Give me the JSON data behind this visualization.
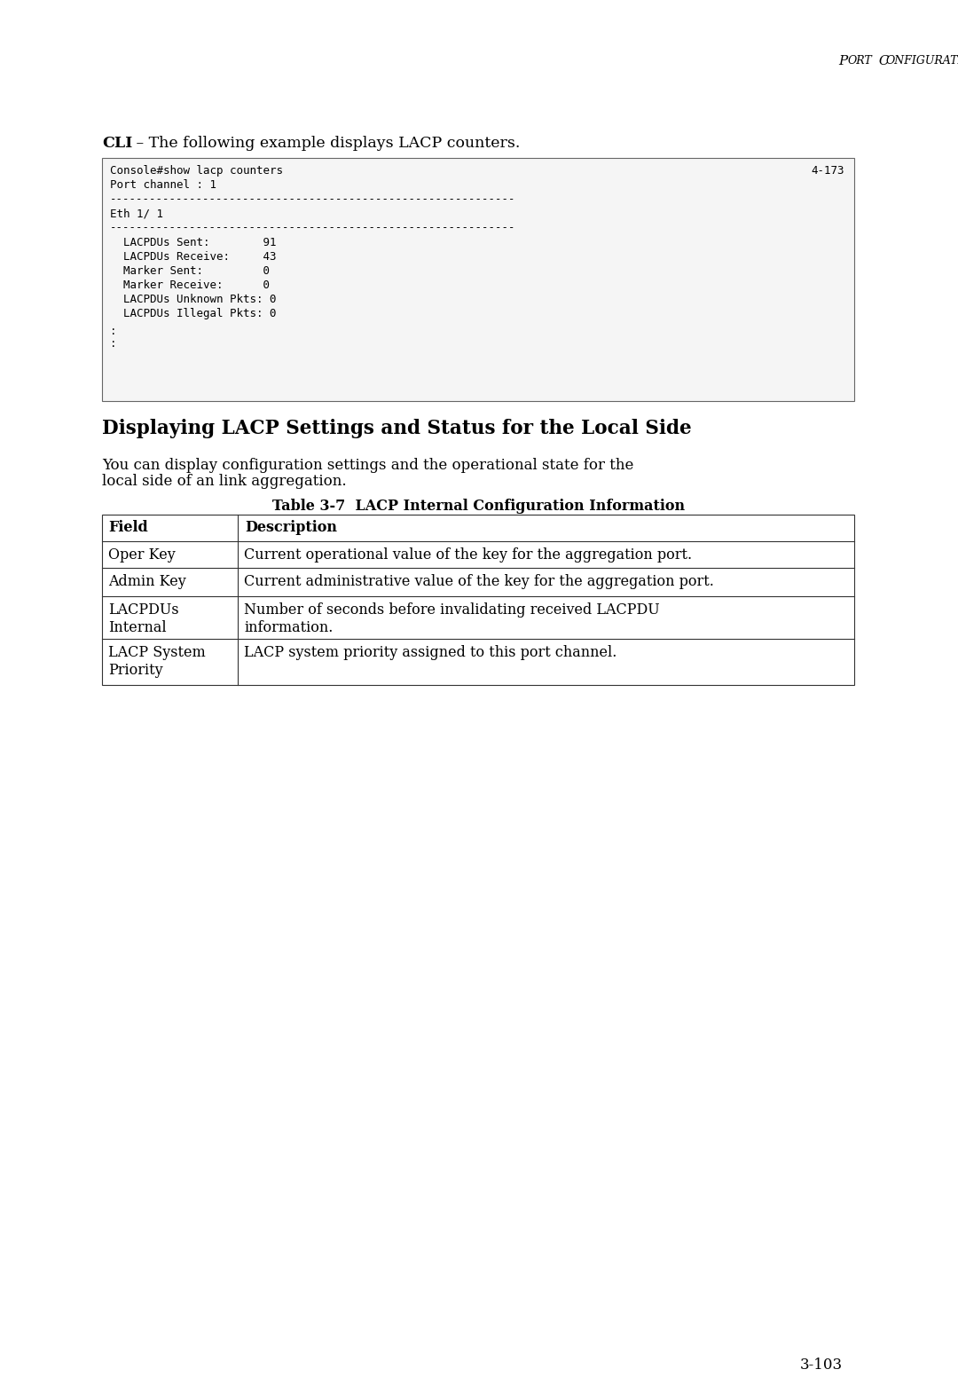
{
  "bg_color": "#ffffff",
  "page_number": "3-103",
  "header_text_p1": "PORT",
  "header_text_p2": "CONFIGURATION",
  "cli_bold": "CLI",
  "cli_rest": " – The following example displays LACP counters.",
  "code_line1": "Console#show lacp counters",
  "code_line1_right": "4-173",
  "code_line2": "Port channel : 1",
  "code_sep": "------------------------------------------------------------",
  "code_line3": "Eth 1/ 1",
  "code_entries": [
    "  LACPDUs Sent:        91",
    "  LACPDUs Receive:     43",
    "  Marker Sent:         0",
    "  Marker Receive:      0",
    "  LACPDUs Unknown Pkts: 0",
    "  LACPDUs Illegal Pkts: 0"
  ],
  "section_title": "Displaying LACP Settings and Status for the Local Side",
  "body_line1": "You can display configuration settings and the operational state for the",
  "body_line2": "local side of an link aggregation.",
  "table_title": "Table 3-7  LACP Internal Configuration Information",
  "table_col1_header": "Field",
  "table_col2_header": "Description",
  "table_rows": [
    {
      "field": "Oper Key",
      "desc": "Current operational value of the key for the aggregation port."
    },
    {
      "field": "Admin Key",
      "desc": "Current administrative value of the key for the aggregation port."
    },
    {
      "field": "LACPDUs\nInternal",
      "desc": "Number of seconds before invalidating received LACPDU\ninformation."
    },
    {
      "field": "LACP System\nPriority",
      "desc": "LACP system priority assigned to this port channel."
    }
  ]
}
